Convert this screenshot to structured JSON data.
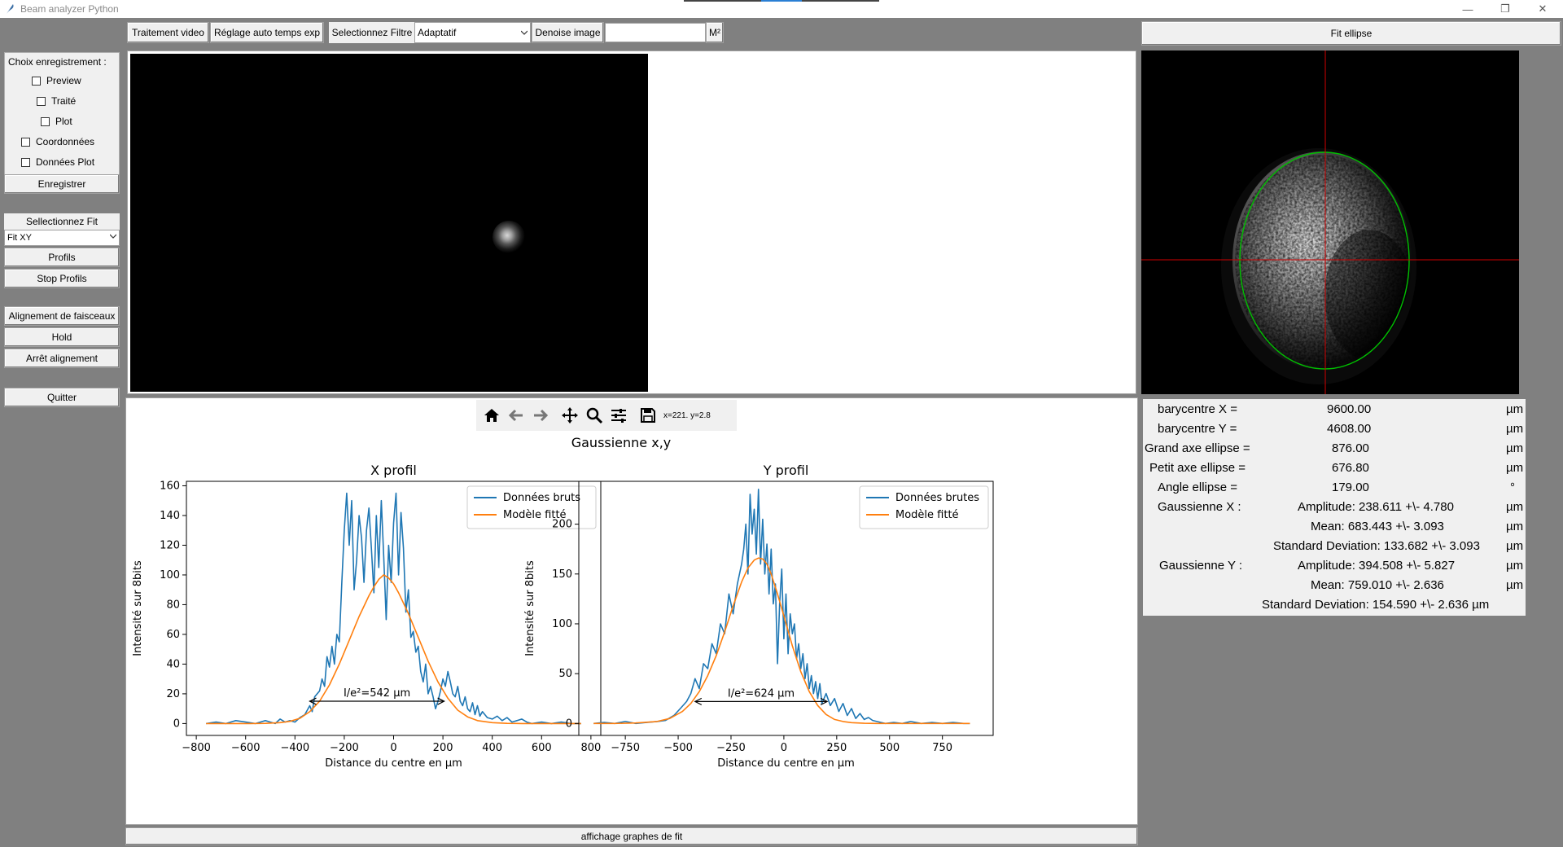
{
  "window": {
    "title": "Beam analyzer Python",
    "controls": [
      "—",
      "❐",
      "✕"
    ]
  },
  "left_panel": {
    "recording_header": "Choix enregistrement :",
    "checkboxes": [
      "Preview",
      "Traité",
      "Plot",
      "Coordonnées",
      "Données Plot"
    ],
    "record_button": "Enregistrer",
    "fit_label": "Sellectionnez Fit",
    "fit_select": "Fit XY",
    "profiles_button": "Profils",
    "stop_profiles_button": "Stop Profils",
    "alignment_button": "Alignement de faisceaux",
    "hold_button": "Hold",
    "stop_alignment_button": "Arrêt alignement",
    "quit_button": "Quitter"
  },
  "toolbar": {
    "video_button": "Traitement video",
    "auto_exposure_button": "Réglage auto temps exp",
    "filter_label": "Selectionnez Filtre",
    "filter_select": "Adaptatif",
    "denoise_button": "Denoise image",
    "m2_entry": "",
    "m2_button": "M²"
  },
  "ellipse_header": "Fit ellipse",
  "plot_toolbar": {
    "coords": "x=221. y=2.8"
  },
  "fit_footer": "affichage graphes de fit",
  "results": [
    {
      "label": "barycentre X =",
      "value": "9600.00",
      "unit": "µm"
    },
    {
      "label": "barycentre Y =",
      "value": "4608.00",
      "unit": "µm"
    },
    {
      "label": "Grand axe ellipse =",
      "value": "876.00",
      "unit": "µm"
    },
    {
      "label": "Petit axe ellipse =",
      "value": "676.80",
      "unit": "µm"
    },
    {
      "label": "Angle ellipse =",
      "value": "179.00",
      "unit": "°"
    }
  ],
  "gauss_x": {
    "label": "Gaussienne X :",
    "amplitude": "Amplitude: 238.611 +\\- 4.780",
    "mean": "Mean: 683.443 +\\- 3.093",
    "std": "Standard Deviation: 133.682 +\\- 3.093",
    "unit": "µm"
  },
  "gauss_y": {
    "label": "Gaussienne Y :",
    "amplitude": "Amplitude: 394.508 +\\- 5.827",
    "mean": "Mean: 759.010 +\\- 2.636",
    "std": "Standard Deviation: 154.590 +\\- 2.636 µm",
    "unit": "µm"
  },
  "figure": {
    "suptitle": "Gaussienne x,y"
  },
  "chart_data": [
    {
      "type": "line",
      "title": "X profil",
      "xlabel": "Distance du centre en µm",
      "ylabel": "Intensité sur 8bits",
      "xlim": [
        -840,
        840
      ],
      "ylim": [
        -8,
        163
      ],
      "xticks": [
        -800,
        -600,
        -400,
        -200,
        0,
        200,
        400,
        600,
        800
      ],
      "xtick_labels": [
        "−800",
        "−600",
        "−400",
        "−200",
        "0",
        "200",
        "400",
        "600",
        "800"
      ],
      "yticks": [
        0,
        20,
        40,
        60,
        80,
        100,
        120,
        140,
        160
      ],
      "legend_position": "top-right",
      "series": [
        {
          "name": "Données bruts",
          "color": "#1f77b4",
          "x": [
            -760,
            -720,
            -680,
            -640,
            -600,
            -560,
            -520,
            -500,
            -480,
            -460,
            -440,
            -420,
            -400,
            -380,
            -360,
            -340,
            -330,
            -320,
            -300,
            -290,
            -280,
            -270,
            -260,
            -250,
            -240,
            -230,
            -220,
            -210,
            -200,
            -190,
            -180,
            -170,
            -160,
            -150,
            -140,
            -130,
            -120,
            -110,
            -100,
            -90,
            -80,
            -70,
            -60,
            -50,
            -40,
            -30,
            -20,
            -10,
            0,
            10,
            20,
            30,
            40,
            50,
            60,
            70,
            80,
            90,
            100,
            110,
            120,
            130,
            140,
            150,
            160,
            170,
            180,
            190,
            200,
            210,
            220,
            230,
            240,
            250,
            260,
            270,
            280,
            290,
            300,
            310,
            320,
            330,
            340,
            350,
            360,
            380,
            400,
            420,
            440,
            460,
            480,
            500,
            520,
            540,
            560,
            600,
            640,
            680,
            720,
            760
          ],
          "y": [
            0,
            1,
            0,
            2,
            1,
            0,
            2,
            1,
            0,
            3,
            1,
            2,
            1,
            4,
            6,
            12,
            8,
            18,
            22,
            30,
            25,
            45,
            38,
            52,
            40,
            60,
            55,
            95,
            130,
            155,
            120,
            150,
            90,
            110,
            140,
            125,
            95,
            130,
            145,
            118,
            88,
            140,
            105,
            150,
            112,
            70,
            120,
            95,
            135,
            155,
            100,
            142,
            118,
            75,
            90,
            58,
            62,
            48,
            52,
            35,
            28,
            40,
            20,
            25,
            18,
            10,
            15,
            22,
            30,
            25,
            35,
            28,
            20,
            18,
            25,
            15,
            12,
            18,
            10,
            8,
            14,
            6,
            12,
            5,
            8,
            4,
            3,
            5,
            2,
            4,
            1,
            2,
            3,
            1,
            0,
            1,
            0,
            1,
            0,
            0
          ],
          "width": 1.6
        },
        {
          "name": "Modèle fitté",
          "color": "#ff7f0e",
          "x": [
            -760,
            -700,
            -640,
            -580,
            -520,
            -460,
            -420,
            -380,
            -340,
            -300,
            -260,
            -220,
            -180,
            -140,
            -100,
            -80,
            -60,
            -40,
            -20,
            0,
            20,
            60,
            100,
            140,
            180,
            220,
            260,
            300,
            340,
            400,
            460,
            520,
            580,
            640,
            700,
            760
          ],
          "y": [
            0,
            0,
            0,
            0,
            0.1,
            0.6,
            1.5,
            3.5,
            8,
            15,
            26,
            40,
            56,
            72,
            86,
            92,
            97,
            100,
            98,
            94,
            88,
            74,
            58,
            42,
            28,
            17,
            9,
            4.5,
            2,
            0.6,
            0.1,
            0,
            0,
            0,
            0,
            0
          ],
          "width": 1.6
        }
      ],
      "annotation": {
        "text": "I/e²=542 µm",
        "x1": -340,
        "x2": 205,
        "y": 15
      }
    },
    {
      "type": "line",
      "title": "Y profil",
      "xlabel": "Distance du centre en µm",
      "ylabel": "Intensité sur 8bits",
      "xlim": [
        -970,
        990
      ],
      "ylim": [
        -12,
        243
      ],
      "xticks": [
        -750,
        -500,
        -250,
        0,
        250,
        500,
        750
      ],
      "xtick_labels": [
        "−750",
        "−500",
        "−250",
        "0",
        "250",
        "500",
        "750"
      ],
      "yticks": [
        0,
        50,
        100,
        150,
        200
      ],
      "legend_position": "top-right",
      "series": [
        {
          "name": "Données brutes",
          "color": "#1f77b4",
          "x": [
            -900,
            -850,
            -800,
            -750,
            -700,
            -650,
            -600,
            -560,
            -520,
            -490,
            -460,
            -440,
            -420,
            -400,
            -380,
            -360,
            -340,
            -320,
            -300,
            -280,
            -260,
            -240,
            -220,
            -200,
            -190,
            -180,
            -170,
            -160,
            -150,
            -140,
            -130,
            -120,
            -110,
            -100,
            -90,
            -80,
            -70,
            -60,
            -50,
            -40,
            -30,
            -20,
            -10,
            0,
            10,
            20,
            30,
            40,
            50,
            60,
            70,
            80,
            90,
            100,
            110,
            120,
            130,
            140,
            150,
            160,
            170,
            180,
            200,
            220,
            240,
            260,
            280,
            300,
            320,
            340,
            360,
            380,
            400,
            420,
            440,
            460,
            480,
            520,
            560,
            600,
            650,
            700,
            750,
            800,
            850,
            880
          ],
          "y": [
            0,
            1,
            0,
            2,
            0,
            1,
            2,
            3,
            8,
            15,
            22,
            30,
            45,
            35,
            60,
            55,
            80,
            70,
            100,
            90,
            130,
            110,
            140,
            160,
            175,
            200,
            150,
            230,
            190,
            215,
            170,
            235,
            160,
            205,
            150,
            180,
            130,
            175,
            120,
            140,
            60,
            120,
            155,
            85,
            130,
            70,
            110,
            90,
            100,
            65,
            80,
            55,
            70,
            45,
            60,
            35,
            48,
            30,
            42,
            25,
            40,
            20,
            30,
            18,
            25,
            12,
            20,
            8,
            15,
            5,
            10,
            4,
            6,
            3,
            2,
            1,
            0,
            1,
            0,
            2,
            0,
            1,
            0,
            1,
            0,
            0
          ],
          "width": 1.6
        },
        {
          "name": "Modèle fitté",
          "color": "#ff7f0e",
          "x": [
            -900,
            -800,
            -700,
            -600,
            -540,
            -480,
            -440,
            -400,
            -360,
            -320,
            -280,
            -240,
            -200,
            -170,
            -140,
            -120,
            -100,
            -80,
            -60,
            -30,
            0,
            40,
            80,
            120,
            160,
            200,
            240,
            280,
            320,
            380,
            440,
            500,
            600,
            700,
            800,
            880
          ],
          "y": [
            0,
            0,
            0.5,
            2,
            5,
            12,
            20,
            32,
            48,
            68,
            92,
            118,
            142,
            156,
            164,
            166,
            165,
            160,
            150,
            130,
            108,
            78,
            52,
            32,
            18,
            9,
            4,
            2,
            0.8,
            0.2,
            0,
            0,
            0,
            0,
            0,
            0
          ],
          "width": 1.6
        }
      ],
      "annotation": {
        "text": "I/e²=624 µm",
        "x1": -420,
        "x2": 205,
        "y": 22
      }
    }
  ]
}
